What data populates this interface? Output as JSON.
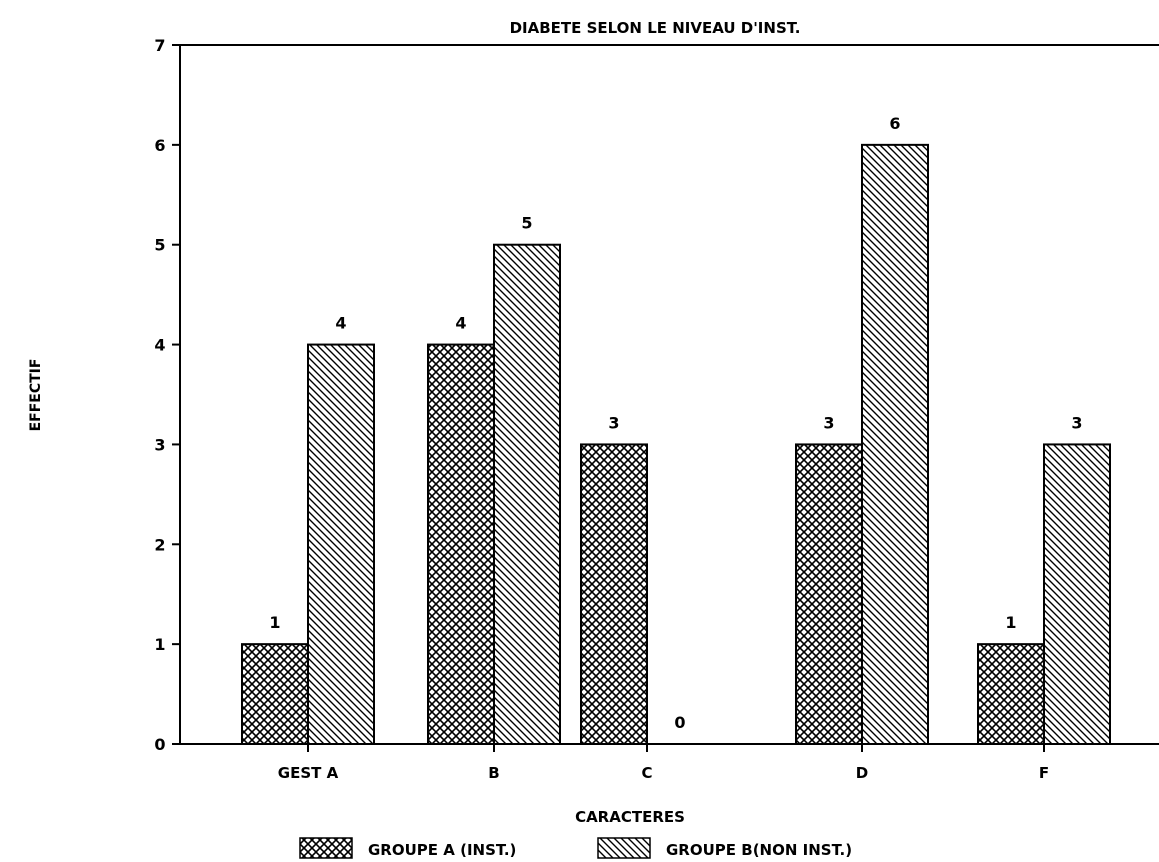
{
  "chart_data": {
    "type": "bar",
    "title": "DIABETE SELON LE NIVEAU D'INST.",
    "xlabel": "CARACTERES",
    "ylabel": "EFFECTIF",
    "categories": [
      "GEST A",
      "B",
      "C",
      "D",
      "F"
    ],
    "series": [
      {
        "name": "GROUPE A (INST.)",
        "values": [
          1,
          4,
          3,
          3,
          1
        ],
        "pattern": "crosshatch"
      },
      {
        "name": "GROUPE B(NON INST.)",
        "values": [
          4,
          5,
          0,
          6,
          3
        ],
        "pattern": "diagonal"
      }
    ],
    "ylim": [
      0,
      7
    ],
    "yticks": [
      0,
      1,
      2,
      3,
      4,
      5,
      6,
      7
    ],
    "grid": false,
    "legend_position": "bottom-center",
    "colors": {
      "bar_fill": "#ffffff",
      "stroke": "#000000"
    }
  }
}
